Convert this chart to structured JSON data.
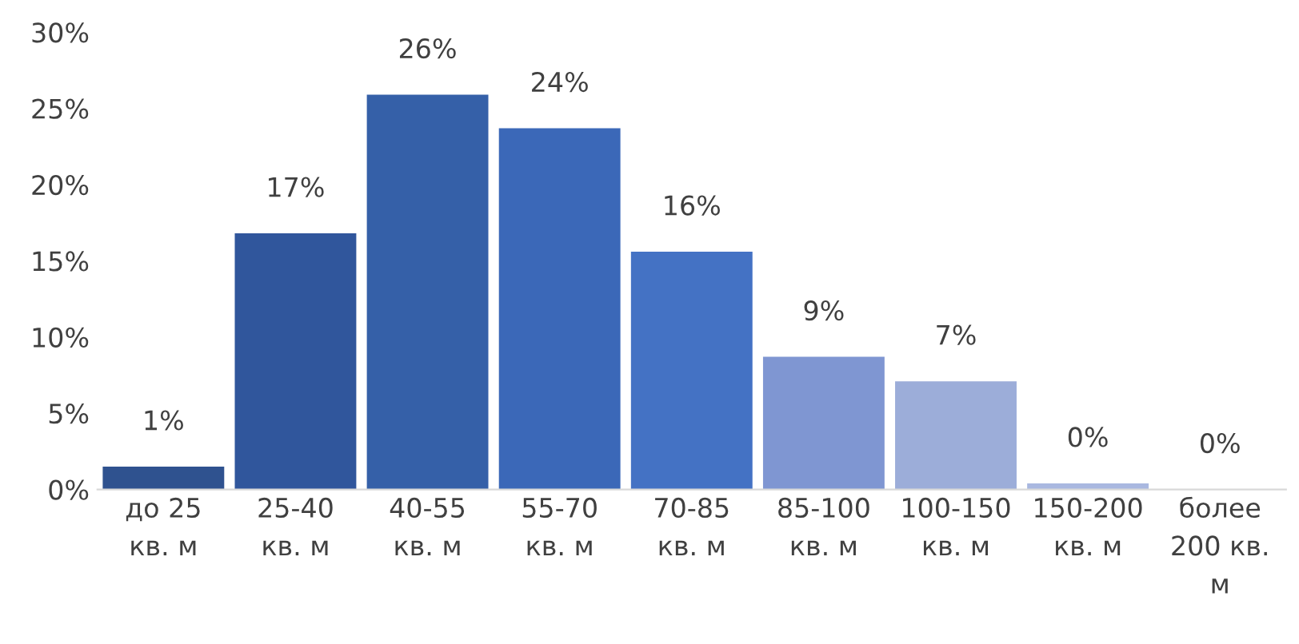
{
  "chart_data": {
    "type": "bar",
    "categories": [
      "до 25\nкв. м",
      "25-40\nкв. м",
      "40-55\nкв. м",
      "55-70\nкв. м",
      "70-85\nкв. м",
      "85-100\nкв. м",
      "100-150\nкв. м",
      "150-200\nкв. м",
      "более\n200 кв.\nм"
    ],
    "values": [
      1.5,
      16.8,
      25.9,
      23.7,
      15.6,
      8.7,
      7.1,
      0.4,
      0
    ],
    "colors": [
      "#2f528f",
      "#30569c",
      "#3560a8",
      "#3b68b8",
      "#4472c4",
      "#7f96d2",
      "#9cadd9",
      "#a9b8e0",
      "#b4c2e4"
    ],
    "value_labels": [
      "1%",
      "17%",
      "26%",
      "24%",
      "16%",
      "9%",
      "7%",
      "0%",
      "0%"
    ],
    "ylim": [
      0,
      30
    ],
    "yticks": [
      {
        "value": 0,
        "label": "0%"
      },
      {
        "value": 5,
        "label": "5%"
      },
      {
        "value": 10,
        "label": "10%"
      },
      {
        "value": 15,
        "label": "15%"
      },
      {
        "value": 20,
        "label": "20%"
      },
      {
        "value": 25,
        "label": "25%"
      },
      {
        "value": 30,
        "label": "30%"
      }
    ],
    "grid": false
  }
}
